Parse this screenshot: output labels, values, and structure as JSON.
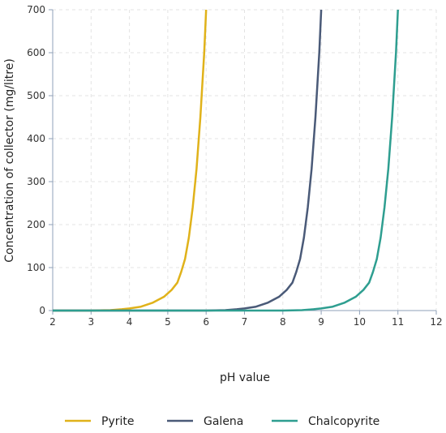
{
  "chart_data": {
    "type": "line",
    "title": "",
    "xlabel": "pH value",
    "ylabel": "Concentration of collector (mg/litre)",
    "xlim": [
      2,
      12
    ],
    "ylim": [
      0,
      700
    ],
    "xticks": [
      2,
      3,
      4,
      5,
      6,
      7,
      8,
      9,
      10,
      11,
      12
    ],
    "yticks": [
      0,
      100,
      200,
      300,
      400,
      500,
      600,
      700
    ],
    "grid": true,
    "legend_position": "bottom",
    "series": [
      {
        "name": "Pyrite",
        "color": "#e0b21a",
        "points": [
          [
            2,
            0
          ],
          [
            3,
            0
          ],
          [
            3.5,
            1
          ],
          [
            3.8,
            3
          ],
          [
            4.0,
            5
          ],
          [
            4.3,
            9
          ],
          [
            4.6,
            18
          ],
          [
            4.9,
            32
          ],
          [
            5.1,
            48
          ],
          [
            5.25,
            65
          ],
          [
            5.35,
            90
          ],
          [
            5.45,
            120
          ],
          [
            5.55,
            170
          ],
          [
            5.65,
            240
          ],
          [
            5.75,
            330
          ],
          [
            5.85,
            450
          ],
          [
            5.95,
            600
          ],
          [
            6.0,
            700
          ]
        ]
      },
      {
        "name": "Galena",
        "color": "#4a5a78",
        "points": [
          [
            2,
            0
          ],
          [
            6,
            0
          ],
          [
            6.5,
            1
          ],
          [
            6.8,
            3
          ],
          [
            7.0,
            5
          ],
          [
            7.3,
            9
          ],
          [
            7.6,
            18
          ],
          [
            7.9,
            32
          ],
          [
            8.1,
            48
          ],
          [
            8.25,
            65
          ],
          [
            8.35,
            90
          ],
          [
            8.45,
            120
          ],
          [
            8.55,
            170
          ],
          [
            8.65,
            240
          ],
          [
            8.75,
            330
          ],
          [
            8.85,
            450
          ],
          [
            8.95,
            600
          ],
          [
            9.0,
            700
          ]
        ]
      },
      {
        "name": "Chalcopyrite",
        "color": "#2e9e90",
        "points": [
          [
            2,
            0
          ],
          [
            8,
            0
          ],
          [
            8.5,
            1
          ],
          [
            8.8,
            3
          ],
          [
            9.0,
            5
          ],
          [
            9.3,
            9
          ],
          [
            9.6,
            18
          ],
          [
            9.9,
            32
          ],
          [
            10.1,
            48
          ],
          [
            10.25,
            65
          ],
          [
            10.35,
            90
          ],
          [
            10.45,
            120
          ],
          [
            10.55,
            170
          ],
          [
            10.65,
            240
          ],
          [
            10.75,
            330
          ],
          [
            10.85,
            450
          ],
          [
            10.95,
            600
          ],
          [
            11.0,
            700
          ]
        ]
      }
    ]
  }
}
